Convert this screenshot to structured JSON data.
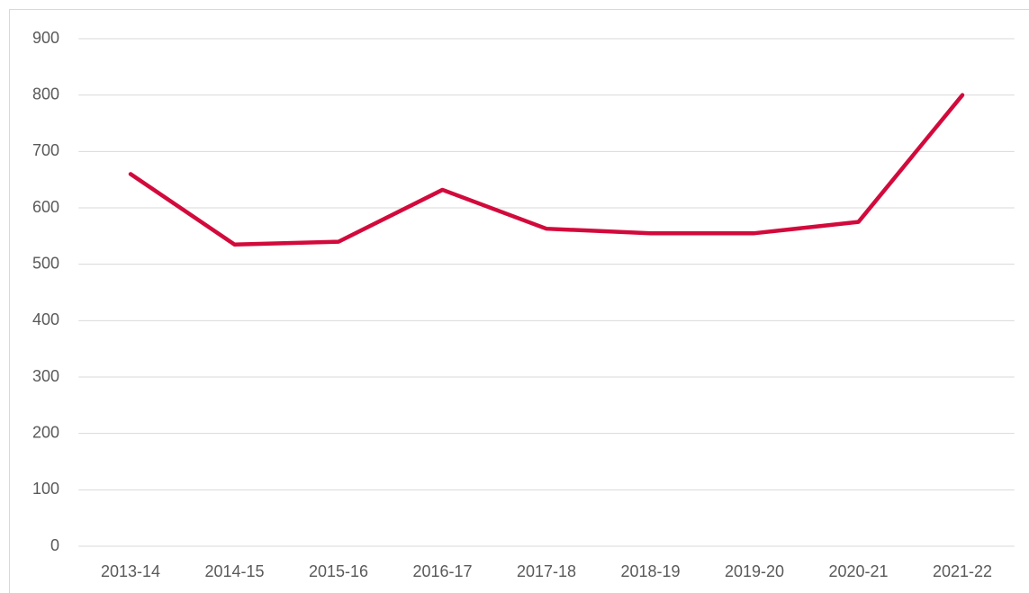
{
  "chart_data": {
    "type": "line",
    "categories": [
      "2013-14",
      "2014-15",
      "2015-16",
      "2016-17",
      "2017-18",
      "2018-19",
      "2019-20",
      "2020-21",
      "2021-22"
    ],
    "series": [
      {
        "color": "#d20a3c",
        "values": [
          660,
          535,
          540,
          632,
          563,
          555,
          555,
          575,
          800
        ]
      }
    ],
    "ylim": [
      0,
      900
    ],
    "yticks": [
      0,
      100,
      200,
      300,
      400,
      500,
      600,
      700,
      800,
      900
    ],
    "grid": true
  }
}
